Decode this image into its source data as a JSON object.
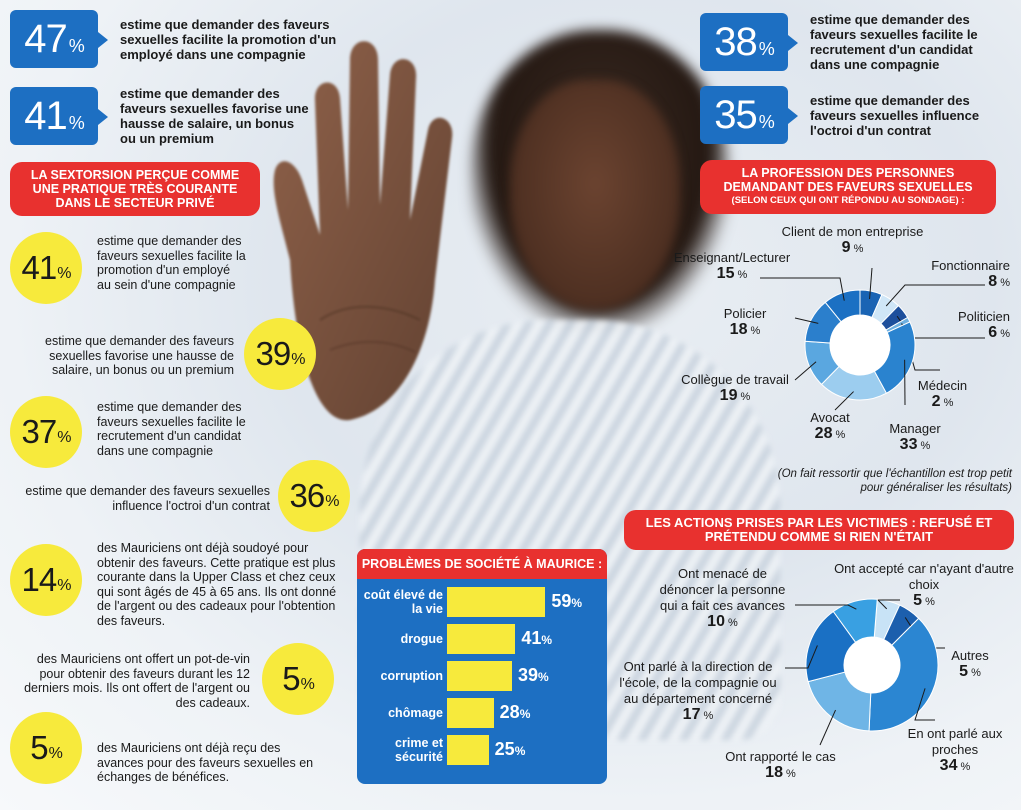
{
  "top_left_stats": [
    {
      "value": "47",
      "unit": "%",
      "text": "estime que demander des faveurs sexuelles facilite la promotion d'un employé dans une compagnie"
    },
    {
      "value": "41",
      "unit": "%",
      "text": "estime que demander des faveurs sexuelles favorise une hausse de salaire, un bonus ou un premium"
    }
  ],
  "top_right_stats": [
    {
      "value": "38",
      "unit": "%",
      "text": "estime que demander des faveurs sexuelles facilite le recrutement d'un candidat dans une compagnie"
    },
    {
      "value": "35",
      "unit": "%",
      "text": "estime que demander des faveurs sexuelles influence l'octroi d'un contrat"
    }
  ],
  "private_sector_banner": "LA SEXTORSION PERÇUE COMME UNE PRATIQUE TRÈS COURANTE DANS LE SECTEUR PRIVÉ",
  "private_sector_stats": [
    {
      "value": "41",
      "unit": "%",
      "text": "estime que demander des faveurs sexuelles facilite la promotion d'un employé au sein d'une compagnie"
    },
    {
      "value": "39",
      "unit": "%",
      "text": "estime que demander des faveurs sexuelles favorise une hausse de salaire, un bonus ou un premium"
    },
    {
      "value": "37",
      "unit": "%",
      "text": "estime que demander des faveurs sexuelles facilite le recrutement d'un candidat dans une compagnie"
    },
    {
      "value": "36",
      "unit": "%",
      "text": "estime que demander des faveurs sexuelles influence l'octroi d'un contrat"
    },
    {
      "value": "14",
      "unit": "%",
      "text": "des Mauriciens ont déjà soudoyé pour obtenir des faveurs. Cette pratique est plus courante dans la Upper Class et chez ceux qui sont âgés de 45 à 65 ans. Ils ont donné de l'argent ou des cadeaux pour l'obtention des faveurs."
    },
    {
      "value": "5",
      "unit": "%",
      "text": "des Mauriciens ont offert un pot-de-vin pour obtenir des faveurs durant les 12 derniers mois. Ils ont offert de l'argent ou des cadeaux."
    },
    {
      "value": "5",
      "unit": "%",
      "text": "des Mauriciens ont déjà reçu des avances pour des faveurs sexuelles en échanges de bénéfices."
    }
  ],
  "profession_banner": {
    "title": "LA PROFESSION DES PERSONNES DEMANDANT DES FAVEURS SEXUELLES",
    "subtitle": "(SELON CEUX QUI ONT RÉPONDU AU SONDAGE) :"
  },
  "profession_note": "(On fait ressortir que l'échantillon est trop petit pour généraliser les résultats)",
  "actions_banner": "LES ACTIONS PRISES PAR LES VICTIMES : REFUSÉ ET PRÉTENDU COMME SI RIEN N'ÉTAIT",
  "percent_sign": "%",
  "chart_data": [
    {
      "type": "bar",
      "title": "PROBLÈMES DE SOCIÉTÉ À MAURICE :",
      "categories": [
        "coût élevé de la vie",
        "drogue",
        "corruption",
        "chômage",
        "crime et sécurité"
      ],
      "values": [
        59,
        41,
        39,
        28,
        25
      ],
      "unit": "%",
      "orientation": "horizontal"
    },
    {
      "type": "pie",
      "donut": true,
      "title": "LA PROFESSION DES PERSONNES DEMANDANT DES FAVEURS SEXUELLES",
      "categories": [
        "Client de mon entreprise",
        "Fonctionnaire",
        "Politicien",
        "Médecin",
        "Manager",
        "Avocat",
        "Collègue de travail",
        "Policier",
        "Enseignant/Lecturer"
      ],
      "values": [
        9,
        8,
        6,
        2,
        33,
        28,
        19,
        18,
        15
      ],
      "unit": "%",
      "colors": [
        "#1a64b4",
        "#cfe6f7",
        "#1d4f9c",
        "#6fb0e0",
        "#2a83cf",
        "#9ccdef",
        "#5aa7e0",
        "#2b7fcc",
        "#1b70c3"
      ]
    },
    {
      "type": "pie",
      "donut": true,
      "title": "LES ACTIONS PRISES PAR LES VICTIMES : REFUSÉ ET PRÉTENDU COMME SI RIEN N'ÉTAIT",
      "categories": [
        "Ont accepté car n'ayant d'autre choix",
        "Autres",
        "En ont parlé aux proches",
        "Ont rapporté le cas",
        "Ont parlé à la direction de l'école, de la compagnie ou au département concerné",
        "Ont menacé de dénoncer la personne qui a fait ces avances"
      ],
      "values": [
        5,
        5,
        34,
        18,
        17,
        10
      ],
      "unit": "%",
      "colors": [
        "#c8e3f6",
        "#1c5fad",
        "#2b86d2",
        "#6fb5e6",
        "#1a70c4",
        "#39a0e2"
      ]
    }
  ]
}
